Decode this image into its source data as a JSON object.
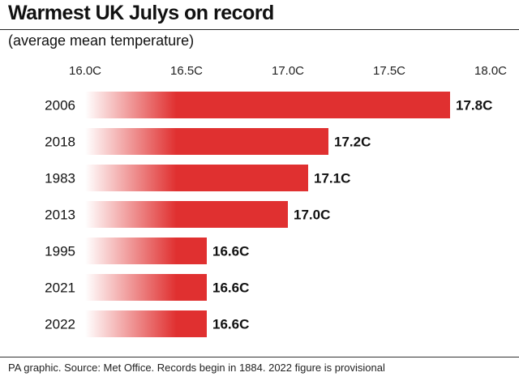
{
  "title": "Warmest UK Julys on record",
  "subtitle": "(average mean temperature)",
  "footer": "PA graphic. Source: Met Office. Records begin in 1884. 2022 figure is provisional",
  "colors": {
    "bar": "#e03030",
    "bar_fade": "#ffffff",
    "text": "#111111"
  },
  "chart_data": {
    "type": "bar",
    "orientation": "horizontal",
    "categories": [
      "2006",
      "2018",
      "1983",
      "2013",
      "1995",
      "2021",
      "2022"
    ],
    "values": [
      17.8,
      17.2,
      17.1,
      17.0,
      16.6,
      16.6,
      16.6
    ],
    "value_labels": [
      "17.8C",
      "17.2C",
      "17.1C",
      "17.0C",
      "16.6C",
      "16.6C",
      "16.6C"
    ],
    "xticks": [
      16.0,
      16.5,
      17.0,
      17.5,
      18.0
    ],
    "xtick_labels": [
      "16.0C",
      "16.5C",
      "17.0C",
      "17.5C",
      "18.0C"
    ],
    "xlim": [
      16.0,
      18.0
    ],
    "grid": false,
    "legend": false
  }
}
